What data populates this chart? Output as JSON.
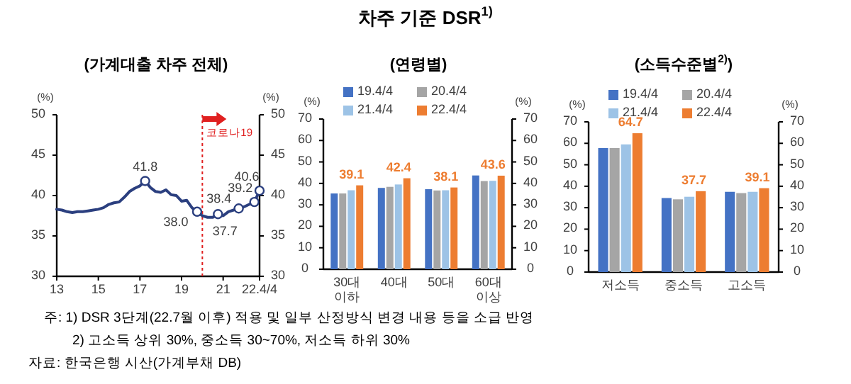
{
  "chart_data": [
    {
      "type": "line",
      "subtitle": "(가계대출 차주 전체)",
      "ylabel": "(%)",
      "y2label": "(%)",
      "x": [
        13,
        13.25,
        13.5,
        13.75,
        14,
        14.25,
        14.5,
        14.75,
        15,
        15.25,
        15.5,
        15.75,
        16,
        16.25,
        16.5,
        16.75,
        17,
        17.25,
        17.5,
        17.75,
        18,
        18.25,
        18.5,
        18.75,
        19,
        19.25,
        19.5,
        19.75,
        20,
        20.25,
        20.5,
        20.75,
        21,
        21.25,
        21.5,
        21.75,
        22,
        22.25,
        22.5,
        22.75
      ],
      "series": [
        {
          "color": "#2b3f7f",
          "values": [
            38.3,
            38.2,
            38.0,
            37.9,
            38.0,
            38.0,
            38.1,
            38.2,
            38.3,
            38.5,
            38.9,
            39.1,
            39.2,
            39.8,
            40.5,
            40.9,
            41.2,
            41.8,
            41.0,
            40.5,
            40.4,
            40.7,
            40.1,
            40.0,
            39.3,
            39.4,
            38.5,
            38.0,
            37.5,
            37.3,
            37.3,
            37.7,
            37.5,
            38.0,
            38.2,
            38.4,
            38.6,
            38.9,
            39.2,
            40.6
          ]
        }
      ],
      "xlim": [
        13,
        22.75
      ],
      "xticks": [
        13,
        15,
        17,
        19,
        21,
        {
          "value": 22.75,
          "label": "22.4/4"
        }
      ],
      "ylim": [
        30,
        50
      ],
      "yticks": [
        30,
        35,
        40,
        45,
        50
      ],
      "y2lim": [
        30,
        50
      ],
      "y2ticks": [
        30,
        35,
        40,
        45,
        50
      ],
      "ref_lines": [
        {
          "axis": "x",
          "value": 20,
          "label": "코로나19",
          "color": "#e02020",
          "line_style": "dotted"
        }
      ],
      "annotations": [
        {
          "text": "41.8",
          "x": 17.25,
          "y": 41.8
        },
        {
          "text": "38.0",
          "x": 19.75,
          "y": 38.0
        },
        {
          "text": "37.7",
          "x": 20.75,
          "y": 37.7
        },
        {
          "text": "38.4",
          "x": 21.75,
          "y": 38.4
        },
        {
          "text": "39.2",
          "x": 22.5,
          "y": 39.2
        },
        {
          "text": "40.6",
          "x": 22.75,
          "y": 40.6
        },
        "주: 1) DSR 3단계(22.7월 이후) 적용 및 일부 산정방식 변경 내용 등을 소급 반영",
        "2) 고소득 상위 30%, 중소득 30~70%, 저소득 하위 30%",
        "자료: 한국은행 시산(가계부채 DB)"
      ]
    },
    {
      "type": "bar",
      "title": "차주 기준 DSR$^{1)}$",
      "subtitle": "(연령별)",
      "ylabel": "(%)",
      "y2label": "(%)",
      "categories": [
        "30대\n이하",
        "40대",
        "50대",
        "60대\n이상"
      ],
      "series": [
        {
          "name": "19.4/4",
          "color": "#4472c4",
          "values": [
            35.3,
            37.9,
            37.3,
            43.7
          ]
        },
        {
          "name": "20.4/4",
          "color": "#a5a5a5",
          "values": [
            35.3,
            38.4,
            36.7,
            41.1
          ]
        },
        {
          "name": "21.4/4",
          "color": "#9dc3e6",
          "values": [
            36.8,
            39.5,
            36.8,
            41.2
          ]
        },
        {
          "name": "22.4/4",
          "color": "#ed7d31",
          "values": [
            39.1,
            42.4,
            38.1,
            43.6
          ],
          "value_labels": [
            "39.1",
            "42.4",
            "38.1",
            "43.6"
          ]
        }
      ],
      "ylim": [
        0,
        70
      ],
      "yticks": [
        0,
        10,
        20,
        30,
        40,
        50,
        60,
        70
      ],
      "y2lim": [
        0,
        70
      ],
      "y2ticks": [
        0,
        10,
        20,
        30,
        40,
        50,
        60,
        70
      ],
      "legend": "top"
    },
    {
      "type": "bar",
      "subtitle": "(소득수준별$^{2)}$)",
      "ylabel": "(%)",
      "y2label": "(%)",
      "categories": [
        "저소득",
        "중소득",
        "고소득"
      ],
      "series": [
        {
          "name": "19.4/4",
          "color": "#4472c4",
          "values": [
            57.8,
            34.5,
            37.4
          ]
        },
        {
          "name": "20.4/4",
          "color": "#a5a5a5",
          "values": [
            57.8,
            33.9,
            36.8
          ]
        },
        {
          "name": "21.4/4",
          "color": "#9dc3e6",
          "values": [
            59.5,
            35.1,
            37.4
          ]
        },
        {
          "name": "22.4/4",
          "color": "#ed7d31",
          "values": [
            64.7,
            37.7,
            39.1
          ],
          "value_labels": [
            "64.7",
            "37.7",
            "39.1"
          ]
        }
      ],
      "ylim": [
        0,
        70
      ],
      "yticks": [
        0,
        10,
        20,
        30,
        40,
        50,
        60,
        70
      ],
      "y2lim": [
        0,
        70
      ],
      "y2ticks": [
        0,
        10,
        20,
        30,
        40,
        50,
        60,
        70
      ],
      "legend": "top"
    }
  ]
}
